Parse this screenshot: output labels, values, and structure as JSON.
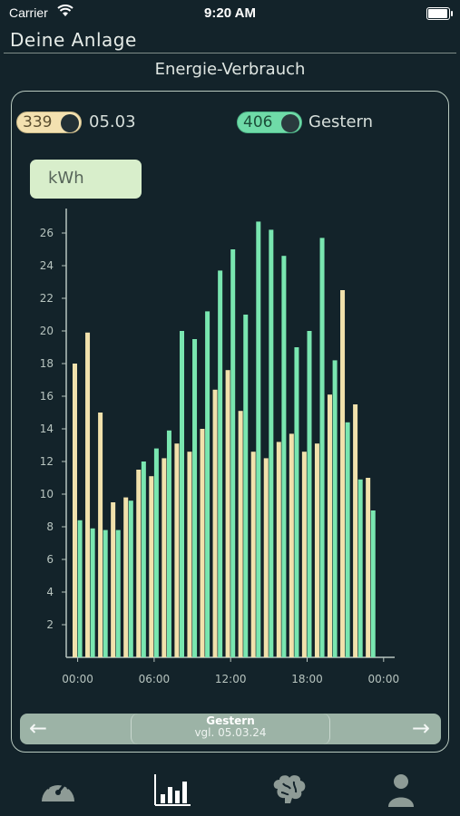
{
  "status_bar": {
    "carrier": "Carrier",
    "time": "9:20 AM"
  },
  "header": {
    "title": "Deine Anlage"
  },
  "section": {
    "title": "Energie-Verbrauch"
  },
  "toggles": [
    {
      "value": "339",
      "label": "05.03",
      "color": "#f3e1b0"
    },
    {
      "value": "406",
      "label": "Gestern",
      "color": "#6fdba8"
    }
  ],
  "unit": {
    "label": "kWh"
  },
  "chart_data": {
    "type": "bar",
    "ylim": [
      0,
      27.5
    ],
    "yticks": [
      2,
      4,
      6,
      8,
      10,
      12,
      14,
      16,
      18,
      20,
      22,
      24,
      26
    ],
    "xtick_labels": [
      "00:00",
      "06:00",
      "12:00",
      "18:00",
      "00:00"
    ],
    "x_tick_positions": [
      0,
      6,
      12,
      18,
      24
    ],
    "categories": [
      0,
      1,
      2,
      3,
      4,
      5,
      6,
      7,
      8,
      9,
      10,
      11,
      12,
      13,
      14,
      15,
      16,
      17,
      18,
      19,
      20,
      21,
      22,
      23
    ],
    "series": [
      {
        "color": "#f1e1ac",
        "values": [
          18.0,
          19.9,
          15.0,
          9.5,
          9.8,
          11.5,
          11.1,
          12.2,
          13.1,
          12.6,
          14.0,
          16.4,
          17.6,
          15.1,
          12.6,
          12.2,
          13.2,
          13.7,
          12.6,
          13.1,
          16.1,
          22.5,
          15.5,
          11.0
        ]
      },
      {
        "color": "#79e6b0",
        "values": [
          8.4,
          7.9,
          7.8,
          7.8,
          9.6,
          12.0,
          12.8,
          13.9,
          20.0,
          19.5,
          21.2,
          23.7,
          25.0,
          21.0,
          26.7,
          26.2,
          24.6,
          19.0,
          20.0,
          25.7,
          18.2,
          14.4,
          10.9,
          9.0
        ]
      }
    ]
  },
  "footer": {
    "main": "Gestern",
    "sub": "vgl. 05.03.24",
    "prev_icon": "arrow-left-icon",
    "next_icon": "arrow-right-icon"
  },
  "tabs": [
    {
      "name": "gauge-icon",
      "active": false
    },
    {
      "name": "bar-chart-icon",
      "active": true
    },
    {
      "name": "brain-icon",
      "active": false
    },
    {
      "name": "person-icon",
      "active": false
    }
  ]
}
